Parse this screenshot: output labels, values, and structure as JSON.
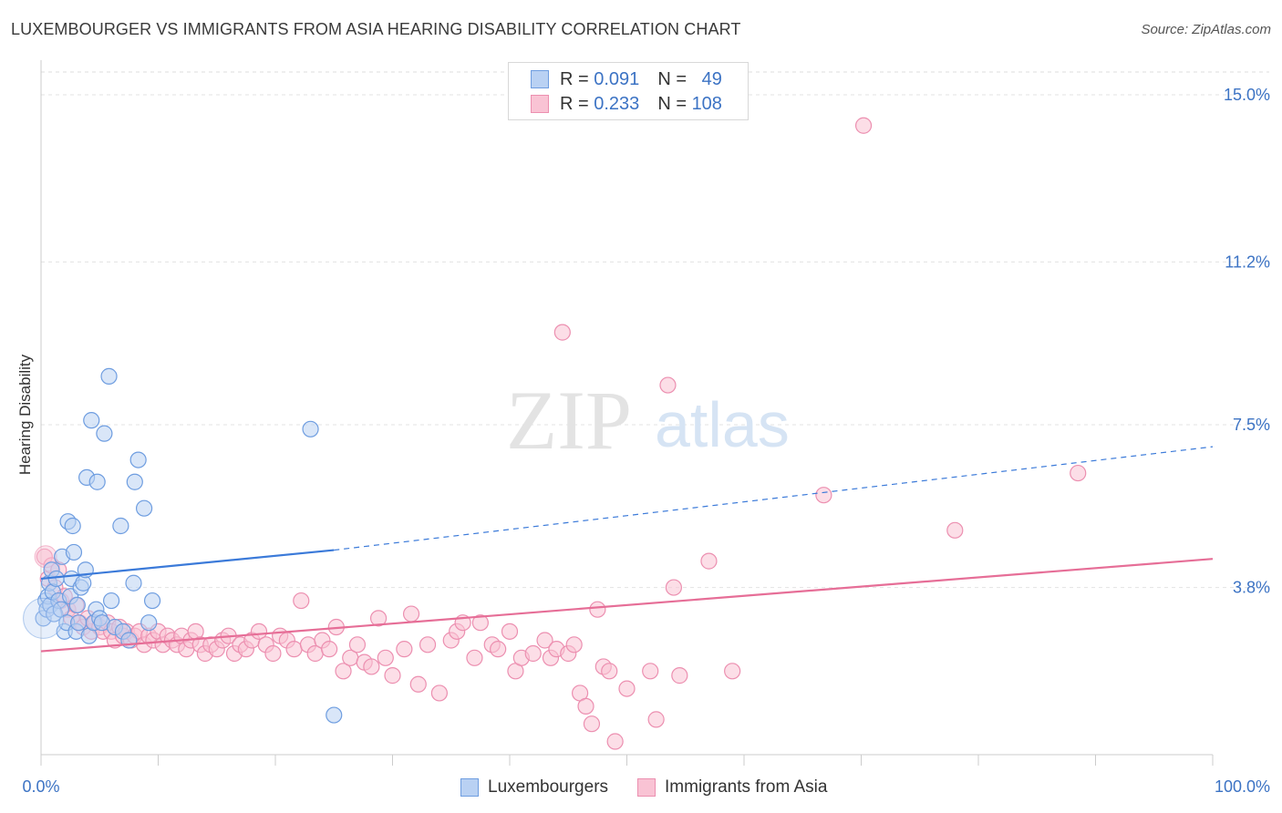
{
  "title": "LUXEMBOURGER VS IMMIGRANTS FROM ASIA HEARING DISABILITY CORRELATION CHART",
  "source": "Source: ZipAtlas.com",
  "watermark": {
    "zip": "ZIP",
    "atlas": "atlas"
  },
  "stats": [
    {
      "r_label": "R =",
      "r_value": "0.091",
      "n_label": "N =",
      "n_value": "49",
      "fill": "#b9d1f3",
      "stroke": "#6e9de0"
    },
    {
      "r_label": "R =",
      "r_value": "0.233",
      "n_label": "N =",
      "n_value": "108",
      "fill": "#f9c3d4",
      "stroke": "#ec8fb0"
    }
  ],
  "chart_data": {
    "type": "scatter",
    "title": "LUXEMBOURGER VS IMMIGRANTS FROM ASIA HEARING DISABILITY CORRELATION CHART",
    "xlabel": "",
    "ylabel": "Hearing Disability",
    "xlim": [
      0,
      100
    ],
    "ylim": [
      0,
      15.6
    ],
    "x_tick_labels": [
      "0.0%",
      "100.0%"
    ],
    "y_ticks": [
      3.8,
      7.5,
      11.2,
      15.0
    ],
    "y_tick_labels": [
      "3.8%",
      "7.5%",
      "11.2%",
      "15.0%"
    ],
    "grid": true,
    "legend": [
      "Luxembourgers",
      "Immigrants from Asia"
    ],
    "series": [
      {
        "name": "Luxembourgers",
        "color": "#6e9de0",
        "fill": "#b9d1f3",
        "points": [
          [
            0.2,
            3.1
          ],
          [
            0.4,
            3.5
          ],
          [
            0.5,
            3.3
          ],
          [
            0.6,
            3.6
          ],
          [
            0.7,
            3.9
          ],
          [
            0.8,
            3.4
          ],
          [
            0.9,
            4.2
          ],
          [
            1.0,
            3.7
          ],
          [
            1.1,
            3.2
          ],
          [
            1.3,
            4.0
          ],
          [
            1.5,
            3.5
          ],
          [
            1.7,
            3.3
          ],
          [
            1.8,
            4.5
          ],
          [
            2.0,
            2.8
          ],
          [
            2.2,
            3.0
          ],
          [
            2.3,
            5.3
          ],
          [
            2.5,
            3.6
          ],
          [
            2.6,
            4.0
          ],
          [
            2.7,
            5.2
          ],
          [
            2.8,
            4.6
          ],
          [
            3.0,
            2.8
          ],
          [
            3.1,
            3.4
          ],
          [
            3.2,
            3.0
          ],
          [
            3.4,
            3.8
          ],
          [
            3.6,
            3.9
          ],
          [
            3.8,
            4.2
          ],
          [
            3.9,
            6.3
          ],
          [
            4.1,
            2.7
          ],
          [
            4.3,
            7.6
          ],
          [
            4.5,
            3.0
          ],
          [
            4.7,
            3.3
          ],
          [
            4.8,
            6.2
          ],
          [
            5.0,
            3.1
          ],
          [
            5.2,
            3.0
          ],
          [
            5.4,
            7.3
          ],
          [
            5.8,
            8.6
          ],
          [
            6.0,
            3.5
          ],
          [
            6.3,
            2.9
          ],
          [
            6.8,
            5.2
          ],
          [
            7.0,
            2.8
          ],
          [
            7.5,
            2.6
          ],
          [
            7.9,
            3.9
          ],
          [
            8.0,
            6.2
          ],
          [
            8.3,
            6.7
          ],
          [
            8.8,
            5.6
          ],
          [
            9.2,
            3.0
          ],
          [
            9.5,
            3.5
          ],
          [
            23.0,
            7.4
          ],
          [
            25.0,
            0.9
          ]
        ]
      },
      {
        "name": "Immigrants from Asia",
        "color": "#ec8fb0",
        "fill": "#f9c3d4",
        "points": [
          [
            0.3,
            4.5
          ],
          [
            0.6,
            4.0
          ],
          [
            0.9,
            4.3
          ],
          [
            1.2,
            3.8
          ],
          [
            1.5,
            4.2
          ],
          [
            1.7,
            3.5
          ],
          [
            2.0,
            3.6
          ],
          [
            2.3,
            3.3
          ],
          [
            2.6,
            3.1
          ],
          [
            3.0,
            3.4
          ],
          [
            3.3,
            3.0
          ],
          [
            3.6,
            2.9
          ],
          [
            4.0,
            3.1
          ],
          [
            4.3,
            2.8
          ],
          [
            4.6,
            3.0
          ],
          [
            5.0,
            2.9
          ],
          [
            5.3,
            2.8
          ],
          [
            5.7,
            3.0
          ],
          [
            6.0,
            2.8
          ],
          [
            6.3,
            2.6
          ],
          [
            6.7,
            2.9
          ],
          [
            7.0,
            2.7
          ],
          [
            7.3,
            2.8
          ],
          [
            7.7,
            2.6
          ],
          [
            8.0,
            2.7
          ],
          [
            8.4,
            2.8
          ],
          [
            8.8,
            2.5
          ],
          [
            9.2,
            2.7
          ],
          [
            9.6,
            2.6
          ],
          [
            10.0,
            2.8
          ],
          [
            10.4,
            2.5
          ],
          [
            10.8,
            2.7
          ],
          [
            11.2,
            2.6
          ],
          [
            11.6,
            2.5
          ],
          [
            12.0,
            2.7
          ],
          [
            12.4,
            2.4
          ],
          [
            12.8,
            2.6
          ],
          [
            13.2,
            2.8
          ],
          [
            13.6,
            2.5
          ],
          [
            14.0,
            2.3
          ],
          [
            14.5,
            2.5
          ],
          [
            15.0,
            2.4
          ],
          [
            15.5,
            2.6
          ],
          [
            16.0,
            2.7
          ],
          [
            16.5,
            2.3
          ],
          [
            17.0,
            2.5
          ],
          [
            17.5,
            2.4
          ],
          [
            18.0,
            2.6
          ],
          [
            18.6,
            2.8
          ],
          [
            19.2,
            2.5
          ],
          [
            19.8,
            2.3
          ],
          [
            20.4,
            2.7
          ],
          [
            21.0,
            2.6
          ],
          [
            21.6,
            2.4
          ],
          [
            22.2,
            3.5
          ],
          [
            22.8,
            2.5
          ],
          [
            23.4,
            2.3
          ],
          [
            24.0,
            2.6
          ],
          [
            24.6,
            2.4
          ],
          [
            25.2,
            2.9
          ],
          [
            25.8,
            1.9
          ],
          [
            26.4,
            2.2
          ],
          [
            27.0,
            2.5
          ],
          [
            27.6,
            2.1
          ],
          [
            28.2,
            2.0
          ],
          [
            28.8,
            3.1
          ],
          [
            29.4,
            2.2
          ],
          [
            30.0,
            1.8
          ],
          [
            31.0,
            2.4
          ],
          [
            31.6,
            3.2
          ],
          [
            32.2,
            1.6
          ],
          [
            33.0,
            2.5
          ],
          [
            34.0,
            1.4
          ],
          [
            35.0,
            2.6
          ],
          [
            35.5,
            2.8
          ],
          [
            36.0,
            3.0
          ],
          [
            37.0,
            2.2
          ],
          [
            37.5,
            3.0
          ],
          [
            38.5,
            2.5
          ],
          [
            39.0,
            2.4
          ],
          [
            40.0,
            2.8
          ],
          [
            40.5,
            1.9
          ],
          [
            41.0,
            2.2
          ],
          [
            42.0,
            2.3
          ],
          [
            43.0,
            2.6
          ],
          [
            43.5,
            2.2
          ],
          [
            44.0,
            2.4
          ],
          [
            44.5,
            9.6
          ],
          [
            45.0,
            2.3
          ],
          [
            45.5,
            2.5
          ],
          [
            46.0,
            1.4
          ],
          [
            46.5,
            1.1
          ],
          [
            47.0,
            0.7
          ],
          [
            47.5,
            3.3
          ],
          [
            48.0,
            2.0
          ],
          [
            48.5,
            1.9
          ],
          [
            49.0,
            0.3
          ],
          [
            50.0,
            1.5
          ],
          [
            52.0,
            1.9
          ],
          [
            52.5,
            0.8
          ],
          [
            53.5,
            8.4
          ],
          [
            54.0,
            3.8
          ],
          [
            54.5,
            1.8
          ],
          [
            57.0,
            4.4
          ],
          [
            59.0,
            1.9
          ],
          [
            66.8,
            5.9
          ],
          [
            70.2,
            14.3
          ],
          [
            78.0,
            5.1
          ],
          [
            88.5,
            6.4
          ]
        ]
      }
    ],
    "trend_lines": [
      {
        "series": "Luxembourgers",
        "from": [
          0,
          4.0
        ],
        "to": [
          25,
          4.65
        ],
        "dashed_to": [
          100,
          7.0
        ],
        "color": "#3b7ad9"
      },
      {
        "series": "Immigrants from Asia",
        "from": [
          0,
          2.35
        ],
        "to": [
          100,
          4.45
        ],
        "color": "#e66e97"
      }
    ]
  },
  "bottom_legend": [
    {
      "label": "Luxembourgers",
      "fill": "#b9d1f3",
      "stroke": "#6e9de0"
    },
    {
      "label": "Immigrants from Asia",
      "fill": "#f9c3d4",
      "stroke": "#ec8fb0"
    }
  ]
}
